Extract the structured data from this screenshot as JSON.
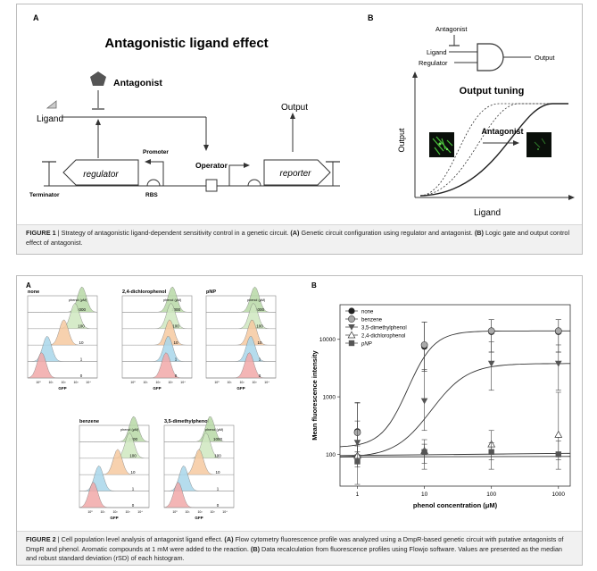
{
  "figure1": {
    "panel_a_label": "A",
    "panel_b_label": "B",
    "title": "Antagonistic ligand effect",
    "antagonist": "Antagonist",
    "ligand": "Ligand",
    "output": "Output",
    "promoter": "Promoter",
    "operator": "Operator",
    "regulator": "regulator",
    "reporter": "reporter",
    "terminator": "Terminator",
    "rbs": "RBS",
    "gate_antagonist": "Antagonist",
    "gate_ligand": "Ligand",
    "gate_regulator": "Regulator",
    "gate_output": "Output",
    "output_tuning": "Output tuning",
    "curve_antagonist": "Antagonist",
    "y_axis": "Output",
    "x_axis": "Ligand",
    "caption_label": "FIGURE 1",
    "caption_text": " | Strategy of antagonistic ligand-dependent sensitivity control in a genetic circuit. ",
    "caption_a": "(A)",
    "caption_a_text": " Genetic circuit configuration using regulator and antagonist. ",
    "caption_b": "(B)",
    "caption_b_text": " Logic gate and output control effect of antagonist."
  },
  "figure2": {
    "panel_a_label": "A",
    "panel_b_label": "B",
    "histograms": [
      {
        "title": "none",
        "legend_title": "phenol (μM)",
        "levels": [
          "1000",
          "100",
          "10",
          "1",
          "0"
        ],
        "xlabel": "GFP"
      },
      {
        "title": "2,4-dichlorophenol",
        "legend_title": "phenol (μM)",
        "levels": [
          "1000",
          "100",
          "10",
          "1",
          "0"
        ],
        "xlabel": "GFP"
      },
      {
        "title": "pNP",
        "legend_title": "phenol (μM)",
        "levels": [
          "1000",
          "100",
          "10",
          "1",
          "0"
        ],
        "xlabel": "GFP"
      },
      {
        "title": "benzene",
        "legend_title": "phenol (μM)",
        "levels": [
          "1000",
          "100",
          "10",
          "1",
          "0"
        ],
        "xlabel": "GFP"
      },
      {
        "title": "3,5-dimethylphenol",
        "legend_title": "phenol (μM)",
        "levels": [
          "1000",
          "100",
          "10",
          "1",
          "0"
        ],
        "xlabel": "GFP"
      }
    ],
    "gfp_ticks": [
      "10⁰",
      "10¹",
      "10²",
      "10³",
      "10⁴"
    ],
    "caption_label": "FIGURE 2",
    "caption_text": " | Cell population level analysis of antagonist ligand effect. ",
    "caption_a": "(A)",
    "caption_a_text": " Flow cytometry fluorescence profile was analyzed using a DmpR-based genetic circuit with putative antagonists of DmpR and phenol. Aromatic compounds at 1 mM were added to the reaction. ",
    "caption_b": "(B)",
    "caption_b_text": " Data recalculation from fluorescence profiles using Flowjo software. Values are presented as the median and robust standard deviation (rSD) of each histogram."
  },
  "chart_data": {
    "type": "scatter",
    "xlabel": "phenol concentration (μM)",
    "ylabel": "Mean fluorescence intensity",
    "x_scale": "log",
    "y_scale": "log",
    "x": [
      1,
      10,
      100,
      1000
    ],
    "x_ticks": [
      "1",
      "10",
      "100",
      "1000"
    ],
    "y_ticks": [
      "100",
      "1000",
      "10000"
    ],
    "xlim": [
      0.55,
      1500
    ],
    "ylim": [
      28,
      40000
    ],
    "legend_position": "top-left",
    "series": [
      {
        "name": "none",
        "marker": "circle-filled",
        "values": [
          250,
          7500,
          13500,
          13500
        ],
        "err_hi": [
          800,
          20000,
          22000,
          22000
        ],
        "err_lo": [
          110,
          2800,
          6000,
          6000
        ]
      },
      {
        "name": "benzene",
        "marker": "circle-gray",
        "values": [
          240,
          8000,
          14000,
          14000
        ],
        "err_hi": [
          780,
          20000,
          22000,
          22000
        ],
        "err_lo": [
          100,
          2800,
          6000,
          6000
        ]
      },
      {
        "name": "3,5-dimethylphenol",
        "marker": "triangle-down",
        "values": [
          160,
          850,
          3800,
          3800
        ],
        "err_hi": [
          380,
          3000,
          9000,
          8000
        ],
        "err_lo": [
          70,
          260,
          1300,
          1300
        ]
      },
      {
        "name": "2,4-dichlorophenol",
        "marker": "triangle-up-open",
        "values": [
          95,
          115,
          150,
          220
        ],
        "err_hi": [
          140,
          180,
          260,
          1200
        ],
        "err_lo": [
          60,
          70,
          80,
          80
        ]
      },
      {
        "name": "pNP",
        "marker": "square",
        "values": [
          75,
          110,
          110,
          100
        ],
        "err_hi": [
          110,
          150,
          160,
          170
        ],
        "err_lo": [
          30,
          55,
          55,
          55
        ]
      }
    ]
  }
}
